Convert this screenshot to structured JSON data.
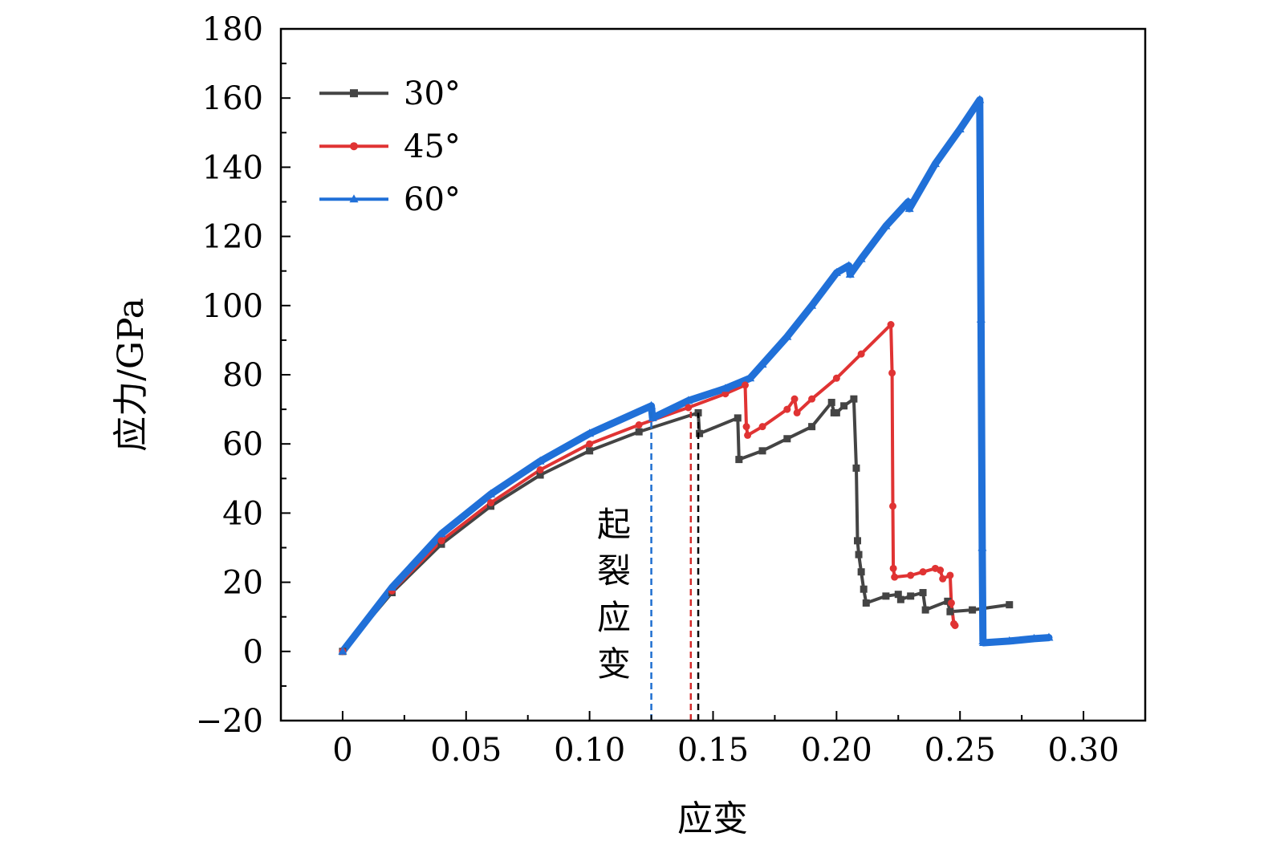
{
  "chart_data": {
    "type": "line",
    "title": "",
    "xlabel": "应变",
    "ylabel": "应力/GPa",
    "xlim": [
      -0.025,
      0.325
    ],
    "ylim": [
      -20,
      180
    ],
    "xticks": [
      0,
      0.05,
      0.1,
      0.15,
      0.2,
      0.25,
      0.3
    ],
    "xtick_labels": [
      "0",
      "0.05",
      "0.10",
      "0.15",
      "0.20",
      "0.25",
      "0.30"
    ],
    "yticks": [
      -20,
      0,
      20,
      40,
      60,
      80,
      100,
      120,
      140,
      160,
      180
    ],
    "ytick_labels": [
      "−20",
      "0",
      "20",
      "40",
      "60",
      "80",
      "100",
      "120",
      "140",
      "160",
      "180"
    ],
    "grid": false,
    "legend_position": "top-left",
    "annotation": "起裂应变",
    "crack_initiation_strain": [
      {
        "series": "60°",
        "x": 0.125,
        "color": "#1f6fd0"
      },
      {
        "series": "45°",
        "x": 0.141,
        "color": "#d42a2a"
      },
      {
        "series": "30°",
        "x": 0.144,
        "color": "#000000"
      }
    ],
    "series": [
      {
        "name": "30°",
        "color": "#444444",
        "marker": "square",
        "points": [
          [
            0,
            0
          ],
          [
            0.02,
            17
          ],
          [
            0.04,
            31
          ],
          [
            0.06,
            42
          ],
          [
            0.08,
            51
          ],
          [
            0.1,
            58
          ],
          [
            0.12,
            63.5
          ],
          [
            0.144,
            69
          ],
          [
            0.1445,
            63
          ],
          [
            0.16,
            67.5
          ],
          [
            0.1605,
            55.5
          ],
          [
            0.17,
            58
          ],
          [
            0.18,
            61.5
          ],
          [
            0.19,
            65
          ],
          [
            0.198,
            72
          ],
          [
            0.199,
            69
          ],
          [
            0.2,
            69
          ],
          [
            0.203,
            71
          ],
          [
            0.207,
            73
          ],
          [
            0.208,
            53
          ],
          [
            0.2085,
            32
          ],
          [
            0.209,
            28
          ],
          [
            0.21,
            23
          ],
          [
            0.211,
            18
          ],
          [
            0.212,
            14
          ],
          [
            0.22,
            16
          ],
          [
            0.225,
            16.5
          ],
          [
            0.226,
            15
          ],
          [
            0.23,
            16
          ],
          [
            0.235,
            17
          ],
          [
            0.236,
            12
          ],
          [
            0.245,
            14.5
          ],
          [
            0.246,
            11.5
          ],
          [
            0.255,
            12
          ],
          [
            0.27,
            13.5
          ]
        ]
      },
      {
        "name": "45°",
        "color": "#e03333",
        "marker": "circle",
        "points": [
          [
            0,
            0
          ],
          [
            0.02,
            17.5
          ],
          [
            0.04,
            32
          ],
          [
            0.06,
            43
          ],
          [
            0.08,
            52.5
          ],
          [
            0.1,
            60
          ],
          [
            0.12,
            65.5
          ],
          [
            0.14,
            70.5
          ],
          [
            0.155,
            74.5
          ],
          [
            0.163,
            77
          ],
          [
            0.1635,
            65
          ],
          [
            0.164,
            62.5
          ],
          [
            0.17,
            65
          ],
          [
            0.18,
            70
          ],
          [
            0.183,
            73
          ],
          [
            0.184,
            69
          ],
          [
            0.19,
            73
          ],
          [
            0.2,
            79
          ],
          [
            0.21,
            86
          ],
          [
            0.222,
            94.5
          ],
          [
            0.2225,
            80.5
          ],
          [
            0.2228,
            42
          ],
          [
            0.223,
            24
          ],
          [
            0.2235,
            21.5
          ],
          [
            0.23,
            22
          ],
          [
            0.235,
            23
          ],
          [
            0.24,
            24
          ],
          [
            0.242,
            23.5
          ],
          [
            0.243,
            21
          ],
          [
            0.246,
            22
          ],
          [
            0.2465,
            14
          ],
          [
            0.2475,
            8
          ],
          [
            0.248,
            7.5
          ]
        ]
      },
      {
        "name": "60°",
        "color": "#2070d8",
        "marker": "triangle",
        "points": [
          [
            0,
            0
          ],
          [
            0.02,
            18.5
          ],
          [
            0.04,
            34
          ],
          [
            0.06,
            45.5
          ],
          [
            0.08,
            55
          ],
          [
            0.1,
            63
          ],
          [
            0.125,
            71
          ],
          [
            0.1255,
            67.5
          ],
          [
            0.14,
            72.5
          ],
          [
            0.155,
            76
          ],
          [
            0.165,
            79
          ],
          [
            0.17,
            83
          ],
          [
            0.18,
            91
          ],
          [
            0.19,
            100
          ],
          [
            0.2,
            109.5
          ],
          [
            0.205,
            111.5
          ],
          [
            0.2055,
            109
          ],
          [
            0.21,
            113.5
          ],
          [
            0.22,
            123
          ],
          [
            0.229,
            130
          ],
          [
            0.2295,
            128
          ],
          [
            0.24,
            141
          ],
          [
            0.25,
            151
          ],
          [
            0.258,
            159.5
          ],
          [
            0.2585,
            96
          ],
          [
            0.259,
            30
          ],
          [
            0.2593,
            3
          ],
          [
            0.2595,
            2.5
          ],
          [
            0.27,
            3
          ],
          [
            0.28,
            3.7
          ],
          [
            0.286,
            4
          ]
        ]
      }
    ]
  }
}
